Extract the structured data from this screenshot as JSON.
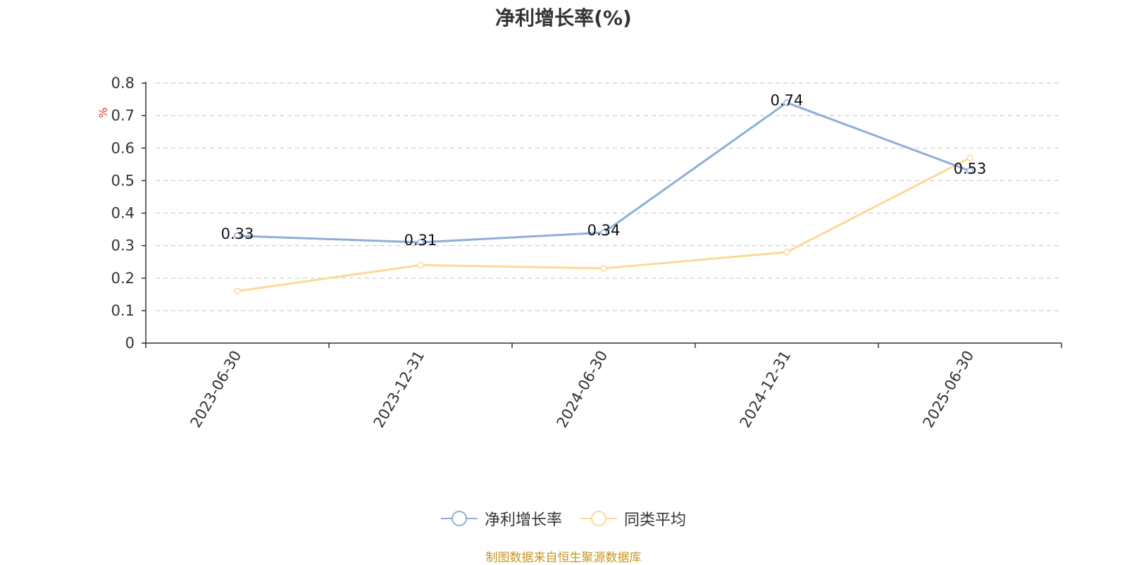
{
  "title": "净利增长率(%)",
  "source": "制图数据来自恒生聚源数据库",
  "chart_data": {
    "type": "line",
    "title": "净利增长率(%)",
    "ylabel": "%",
    "categories": [
      "2023-06-30",
      "2023-12-31",
      "2024-06-30",
      "2024-12-31",
      "2025-06-30"
    ],
    "yticks": [
      "0",
      "0.1",
      "0.2",
      "0.3",
      "0.4",
      "0.5",
      "0.6",
      "0.7",
      "0.8"
    ],
    "ylim": [
      0,
      0.8
    ],
    "grid": true,
    "legend_position": "bottom-center",
    "series": [
      {
        "name": "净利增长率",
        "values": [
          0.33,
          0.31,
          0.34,
          0.74,
          0.53
        ],
        "labels": [
          "0.33",
          "0.31",
          "0.34",
          "0.74",
          "0.53"
        ],
        "color": "#8eaed8"
      },
      {
        "name": "同类平均",
        "values": [
          0.16,
          0.24,
          0.23,
          0.28,
          0.57
        ],
        "color": "#fbd999"
      }
    ]
  }
}
